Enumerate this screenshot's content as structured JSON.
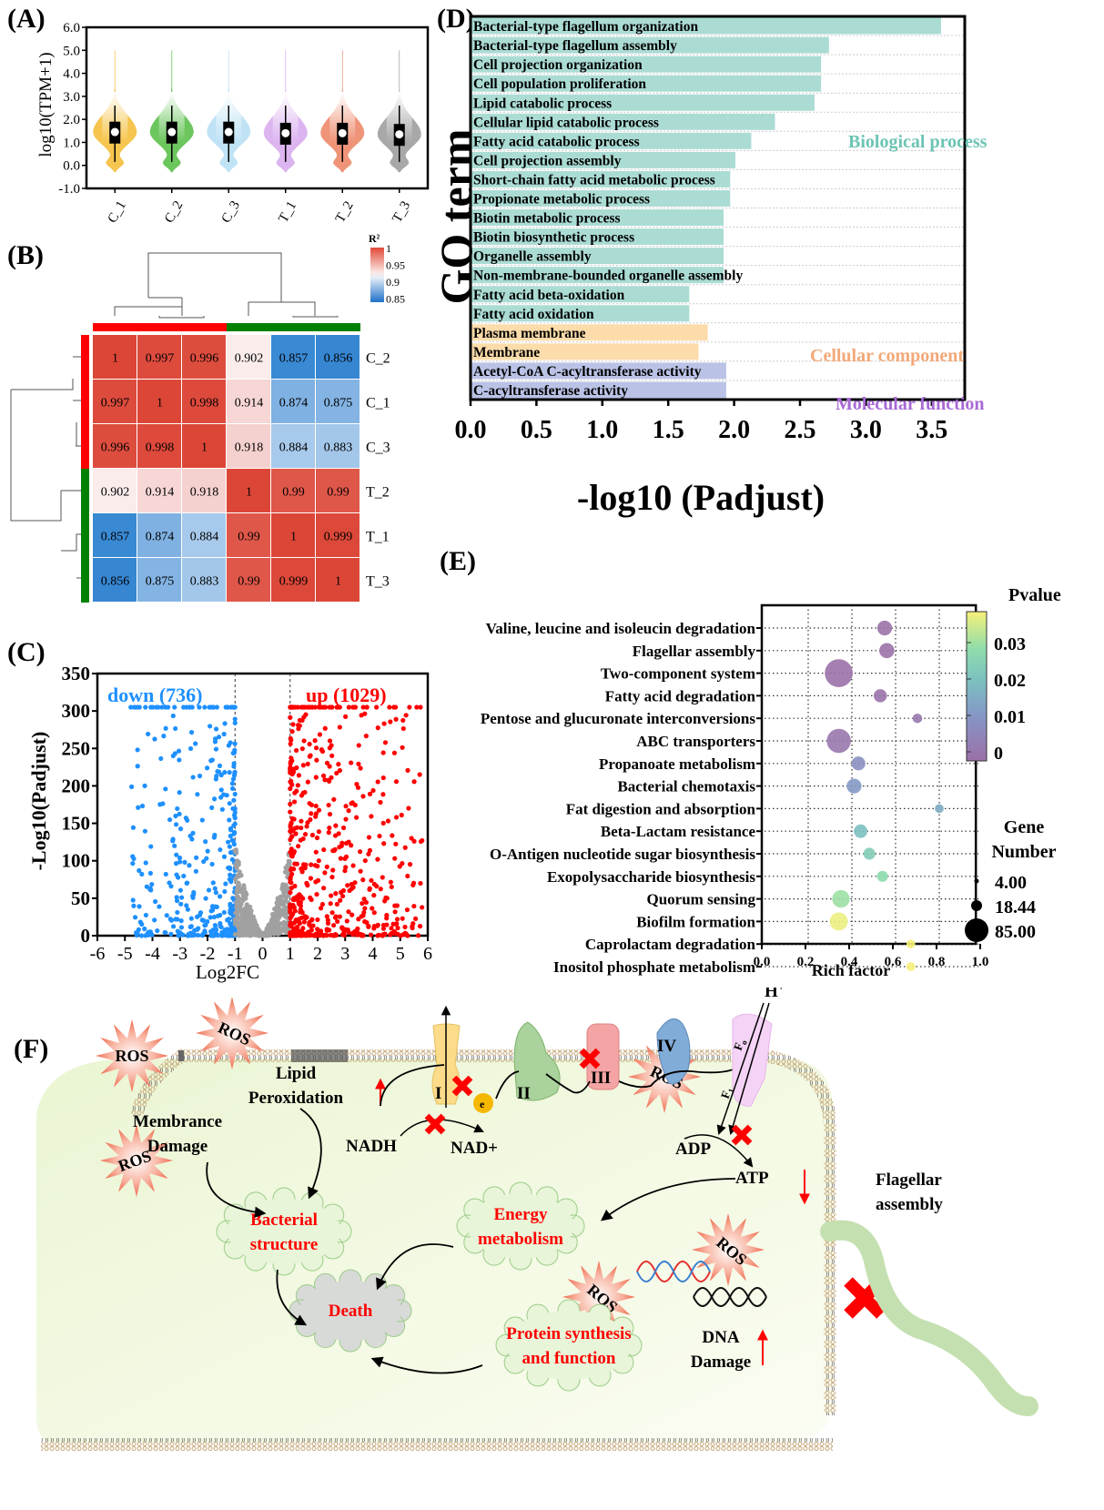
{
  "panel_labels": {
    "A": "(A)",
    "B": "(B)",
    "C": "(C)",
    "D": "(D)",
    "E": "(E)",
    "F": "(F)"
  },
  "chart_data": [
    {
      "id": "A",
      "type": "violin",
      "title": "",
      "xlabel": "",
      "ylabel": "log10(TPM+1)",
      "ylim": [
        -1.0,
        6.0
      ],
      "yticks": [
        "-1.0",
        "0.0",
        "1.0",
        "2.0",
        "3.0",
        "4.0",
        "5.0",
        "6.0"
      ],
      "categories": [
        "C_1",
        "C_2",
        "C_3",
        "T_1",
        "T_2",
        "T_3"
      ],
      "colors": [
        "#f5c54f",
        "#6cc65e",
        "#bfe3f5",
        "#dcb4f0",
        "#ef9478",
        "#a8a8a8"
      ],
      "series": [
        {
          "name": "C_1",
          "median": 1.45,
          "q1": 0.95,
          "q3": 1.9,
          "whisker_low": 0.15,
          "whisker_high": 2.6,
          "min": -0.3,
          "max": 5.0
        },
        {
          "name": "C_2",
          "median": 1.45,
          "q1": 0.95,
          "q3": 1.9,
          "whisker_low": 0.15,
          "whisker_high": 2.6,
          "min": -0.3,
          "max": 5.0
        },
        {
          "name": "C_3",
          "median": 1.45,
          "q1": 0.95,
          "q3": 1.9,
          "whisker_low": 0.15,
          "whisker_high": 2.6,
          "min": -0.3,
          "max": 5.0
        },
        {
          "name": "T_1",
          "median": 1.4,
          "q1": 0.9,
          "q3": 1.85,
          "whisker_low": 0.15,
          "whisker_high": 2.6,
          "min": -0.3,
          "max": 5.0
        },
        {
          "name": "T_2",
          "median": 1.4,
          "q1": 0.9,
          "q3": 1.85,
          "whisker_low": 0.15,
          "whisker_high": 2.6,
          "min": -0.3,
          "max": 5.0
        },
        {
          "name": "T_3",
          "median": 1.35,
          "q1": 0.85,
          "q3": 1.8,
          "whisker_low": 0.15,
          "whisker_high": 2.6,
          "min": -0.3,
          "max": 5.0
        }
      ]
    },
    {
      "id": "B",
      "type": "heatmap",
      "title": "",
      "legend_title": "R²",
      "legend_ticks": [
        "1",
        "0.95",
        "0.9",
        "0.85"
      ],
      "range": [
        0.85,
        1.0
      ],
      "column_labels": [
        "C_2",
        "C_1",
        "C_3",
        "T_2",
        "T_1",
        "T_3"
      ],
      "row_labels": [
        "C_2",
        "C_1",
        "C_3",
        "T_2",
        "T_1",
        "T_3"
      ],
      "group_colors": {
        "C": "#ff0000",
        "T": "#008000"
      },
      "matrix": [
        [
          "1",
          "0.997",
          "0.996",
          "0.902",
          "0.857",
          "0.856"
        ],
        [
          "0.997",
          "1",
          "0.998",
          "0.914",
          "0.874",
          "0.875"
        ],
        [
          "0.996",
          "0.998",
          "1",
          "0.918",
          "0.884",
          "0.883"
        ],
        [
          "0.902",
          "0.914",
          "0.918",
          "1",
          "0.99",
          "0.99"
        ],
        [
          "0.857",
          "0.874",
          "0.884",
          "0.99",
          "1",
          "0.999"
        ],
        [
          "0.856",
          "0.875",
          "0.883",
          "0.99",
          "0.999",
          "1"
        ]
      ]
    },
    {
      "id": "C",
      "type": "scatter",
      "title": "",
      "xlabel": "Log2FC",
      "ylabel": "-Log10(Padjust)",
      "xlim": [
        -6,
        6
      ],
      "ylim": [
        0,
        350
      ],
      "xticks": [
        "-6",
        "-5",
        "-4",
        "-3",
        "-2",
        "-1",
        "0",
        "1",
        "2",
        "3",
        "4",
        "5",
        "6"
      ],
      "yticks": [
        "0",
        "50",
        "100",
        "150",
        "200",
        "250",
        "300",
        "350"
      ],
      "thresholds": {
        "log2fc": [
          -1,
          1
        ]
      },
      "annotations": [
        {
          "text": "down (736)",
          "color": "#1e90ff"
        },
        {
          "text": "up (1029)",
          "color": "#ff0000"
        }
      ],
      "series": [
        {
          "name": "down",
          "count": 736,
          "color": "#1e90ff",
          "x_range": [
            -6,
            -1
          ],
          "y_cap": 305
        },
        {
          "name": "not significant",
          "color": "#a0a0a0",
          "x_range": [
            -1,
            1
          ],
          "y_max": 130
        },
        {
          "name": "up",
          "count": 1029,
          "color": "#ff0000",
          "x_range": [
            1,
            6
          ],
          "y_cap": 305
        }
      ]
    },
    {
      "id": "D",
      "type": "bar",
      "orientation": "horizontal",
      "title": "",
      "xlabel": "-log10 (Padjust)",
      "ylabel": "GO term",
      "xlim": [
        0,
        3.75
      ],
      "xticks": [
        "0.0",
        "0.5",
        "1.0",
        "1.5",
        "2.0",
        "2.5",
        "3.0",
        "3.5"
      ],
      "categories": [
        "Bacterial-type flagellum organization",
        "Bacterial-type flagellum assembly",
        "Cell projection organization",
        "Cell population proliferation",
        "Lipid catabolic process",
        "Cellular lipid catabolic process",
        "Fatty acid catabolic process",
        "Cell projection assembly",
        "Short-chain fatty acid metabolic process",
        "Propionate metabolic process",
        "Biotin metabolic process",
        "Biotin biosynthetic process",
        "Organelle assembly",
        "Non-membrane-bounded organelle assembly",
        "Fatty acid beta-oxidation",
        "Fatty acid oxidation",
        "Plasma membrane",
        "Membrane",
        "Acetyl-CoA C-acyltransferase activity",
        "C-acyltransferase activity"
      ],
      "values": [
        3.57,
        2.72,
        2.66,
        2.66,
        2.61,
        2.31,
        2.13,
        2.01,
        1.97,
        1.97,
        1.92,
        1.92,
        1.92,
        1.92,
        1.66,
        1.66,
        1.8,
        1.73,
        1.94,
        1.94
      ],
      "groups": [
        "BP",
        "BP",
        "BP",
        "BP",
        "BP",
        "BP",
        "BP",
        "BP",
        "BP",
        "BP",
        "BP",
        "BP",
        "BP",
        "BP",
        "BP",
        "BP",
        "CC",
        "CC",
        "MF",
        "MF"
      ],
      "group_labels": {
        "BP": "Biological process",
        "CC": "Cellular component",
        "MF": "Molecular function"
      },
      "group_colors": {
        "BP": "#abdcd4",
        "CC": "#fcdcaa",
        "MF": "#bac2e6"
      },
      "group_text_colors": {
        "BP": "#6cc4b4",
        "CC": "#f2a878",
        "MF": "#a86ad6"
      }
    },
    {
      "id": "E",
      "type": "scatter",
      "subtype": "bubble",
      "title": "",
      "xlabel": "Rich factor",
      "ylabel": "",
      "xlim": [
        0.0,
        1.0
      ],
      "xticks": [
        "0.0",
        "0.2",
        "0.4",
        "0.6",
        "0.8",
        "1.0"
      ],
      "categories": [
        "Valine, leucine and isoleucin degradation",
        "Flagellar assembly",
        "Two-component system",
        "Fatty acid degradation",
        "Pentose and glucuronate interconversions",
        "ABC transporters",
        "Propanoate metabolism",
        "Bacterial chemotaxis",
        "Fat digestion and absorption",
        "Beta-Lactam resistance",
        "O-Antigen nucleotide sugar biosynthesis",
        "Exopolysaccharide biosynthesis",
        "Quorum sensing",
        "Biofilm formation",
        "Caprolactam degradation",
        "Inositol phosphate metabolism"
      ],
      "rich_factor": [
        0.55,
        0.56,
        0.34,
        0.53,
        0.7,
        0.34,
        0.43,
        0.41,
        0.8,
        0.44,
        0.48,
        0.54,
        0.35,
        0.34,
        0.67,
        0.67
      ],
      "gene_number": [
        18,
        19,
        85,
        13,
        5,
        60,
        15,
        18,
        4,
        14,
        10,
        8,
        28,
        30,
        4,
        4
      ],
      "pvalue": [
        0.0005,
        0.0005,
        0.0003,
        0.001,
        0.002,
        0.002,
        0.009,
        0.012,
        0.016,
        0.02,
        0.023,
        0.027,
        0.029,
        0.036,
        0.037,
        0.037
      ],
      "color_legend": {
        "title": "Pvalue",
        "ticks": [
          "0.03",
          "0.02",
          "0.01",
          "0"
        ],
        "range": [
          0,
          0.037
        ]
      },
      "size_legend": {
        "title_line1": "Gene",
        "title_line2": "Number",
        "values": [
          "4.00",
          "18.44",
          "85.00"
        ]
      }
    }
  ],
  "diagram_F": {
    "ros_label": "ROS",
    "membrane_damage": [
      "Membrance",
      "Damage"
    ],
    "lipid_peroxidation": [
      "Lipid",
      "Peroxidation"
    ],
    "nadh": "NADH",
    "nad": "NAD+",
    "complexes": [
      "I",
      "II",
      "III",
      "IV"
    ],
    "electron": "e",
    "proton": "H",
    "proton_sup": "+",
    "atp_synthase_f0": "F",
    "atp_synthase_f0_sub": "o",
    "atp_synthase_f1": "F",
    "atp_synthase_f1_sub": "1",
    "adp": "ADP",
    "atp": "ATP",
    "flagellar": [
      "Flagellar",
      "assembly"
    ],
    "bacterial_structure": [
      "Bacterial",
      "structure"
    ],
    "energy_metabolism": [
      "Energy",
      "metabolism"
    ],
    "death": "Death",
    "protein_synthesis": [
      "Protein synthesis",
      "and function"
    ],
    "dna_damage": [
      "DNA",
      "Damage"
    ]
  }
}
